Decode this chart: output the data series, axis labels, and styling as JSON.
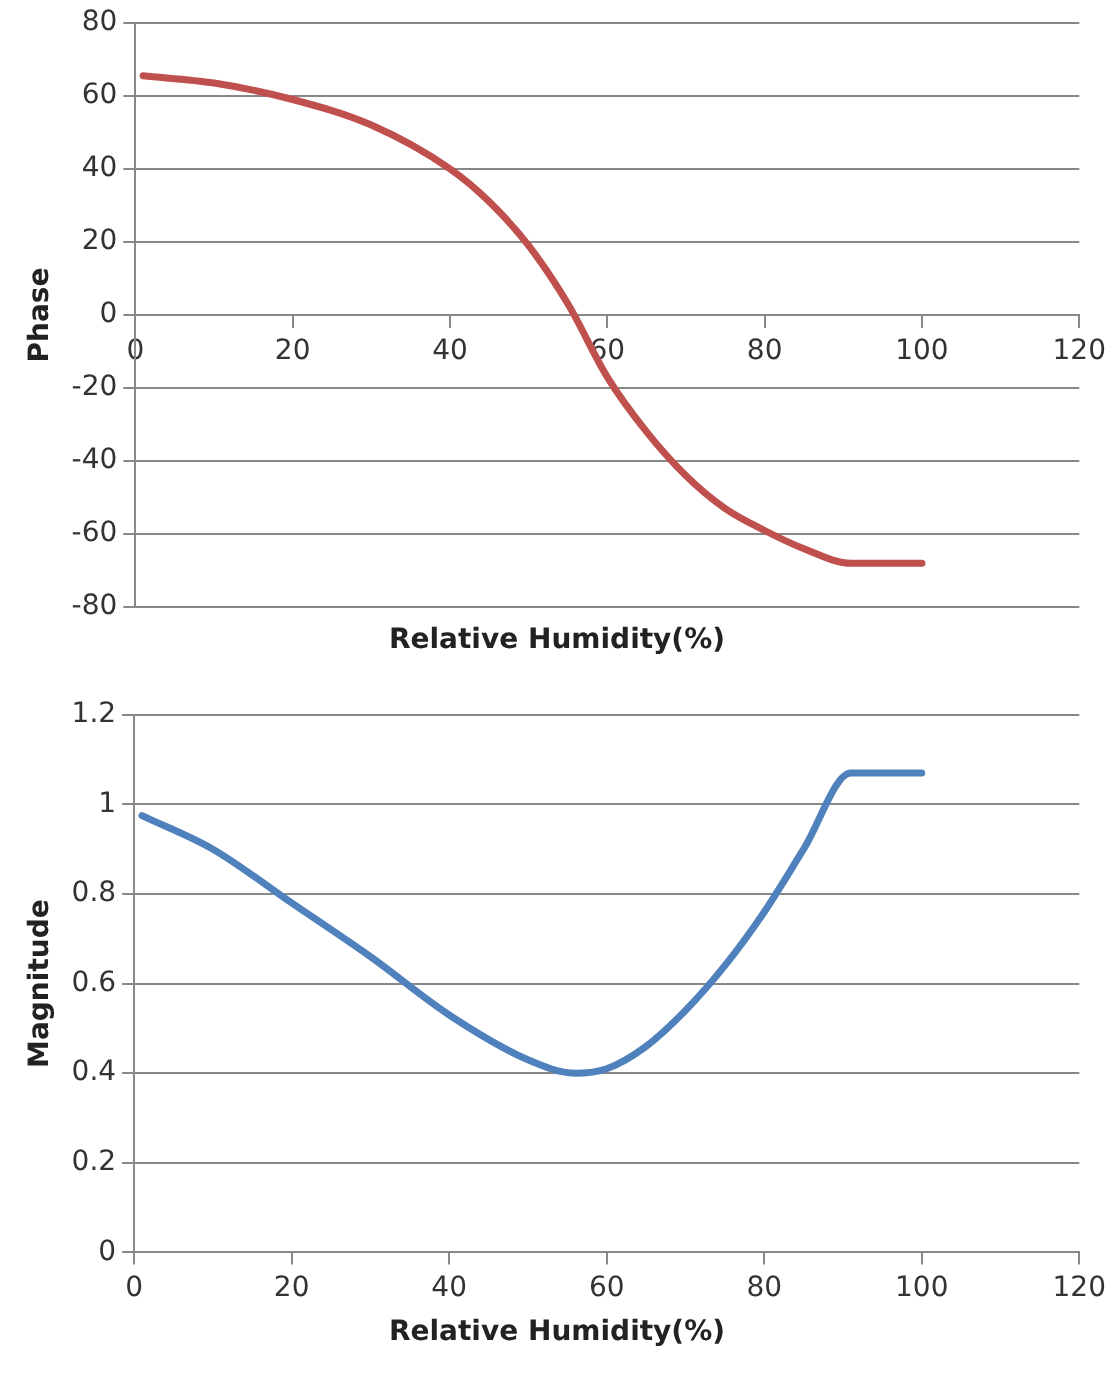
{
  "chart_data": [
    {
      "type": "line",
      "xlabel": "Relative Humidity(%)",
      "ylabel": "Phase",
      "xlim": [
        0,
        120
      ],
      "xticks": [
        0,
        20,
        40,
        60,
        80,
        100,
        120
      ],
      "ylim": [
        -80,
        80
      ],
      "yticks": [
        -80,
        -60,
        -40,
        -20,
        0,
        20,
        40,
        60,
        80
      ],
      "grid": "y",
      "legend": false,
      "marker": "none",
      "series": [
        {
          "color": "#c0504d",
          "x": [
            1,
            10,
            20,
            30,
            40,
            45,
            50,
            55,
            60,
            65,
            70,
            75,
            80,
            85,
            91,
            100
          ],
          "values": [
            65.5,
            63.5,
            59,
            52,
            40,
            31,
            19,
            3,
            -17,
            -32,
            -44,
            -53,
            -59,
            -64,
            -68,
            -68
          ]
        }
      ]
    },
    {
      "type": "line",
      "xlabel": "Relative Humidity(%)",
      "ylabel": "Magnitude",
      "xlim": [
        0,
        120
      ],
      "xticks": [
        0,
        20,
        40,
        60,
        80,
        100,
        120
      ],
      "ylim": [
        0,
        1.2
      ],
      "yticks": [
        0,
        0.2,
        0.4,
        0.6,
        0.8,
        1,
        1.2
      ],
      "grid": "y",
      "legend": false,
      "marker": "none",
      "series": [
        {
          "color": "#4f81bd",
          "x": [
            1,
            10,
            20,
            30,
            40,
            50,
            56,
            60,
            65,
            70,
            75,
            80,
            85,
            91,
            100
          ],
          "values": [
            0.975,
            0.9,
            0.78,
            0.66,
            0.53,
            0.43,
            0.4,
            0.41,
            0.46,
            0.54,
            0.64,
            0.76,
            0.9,
            1.07,
            1.07
          ]
        }
      ]
    }
  ]
}
